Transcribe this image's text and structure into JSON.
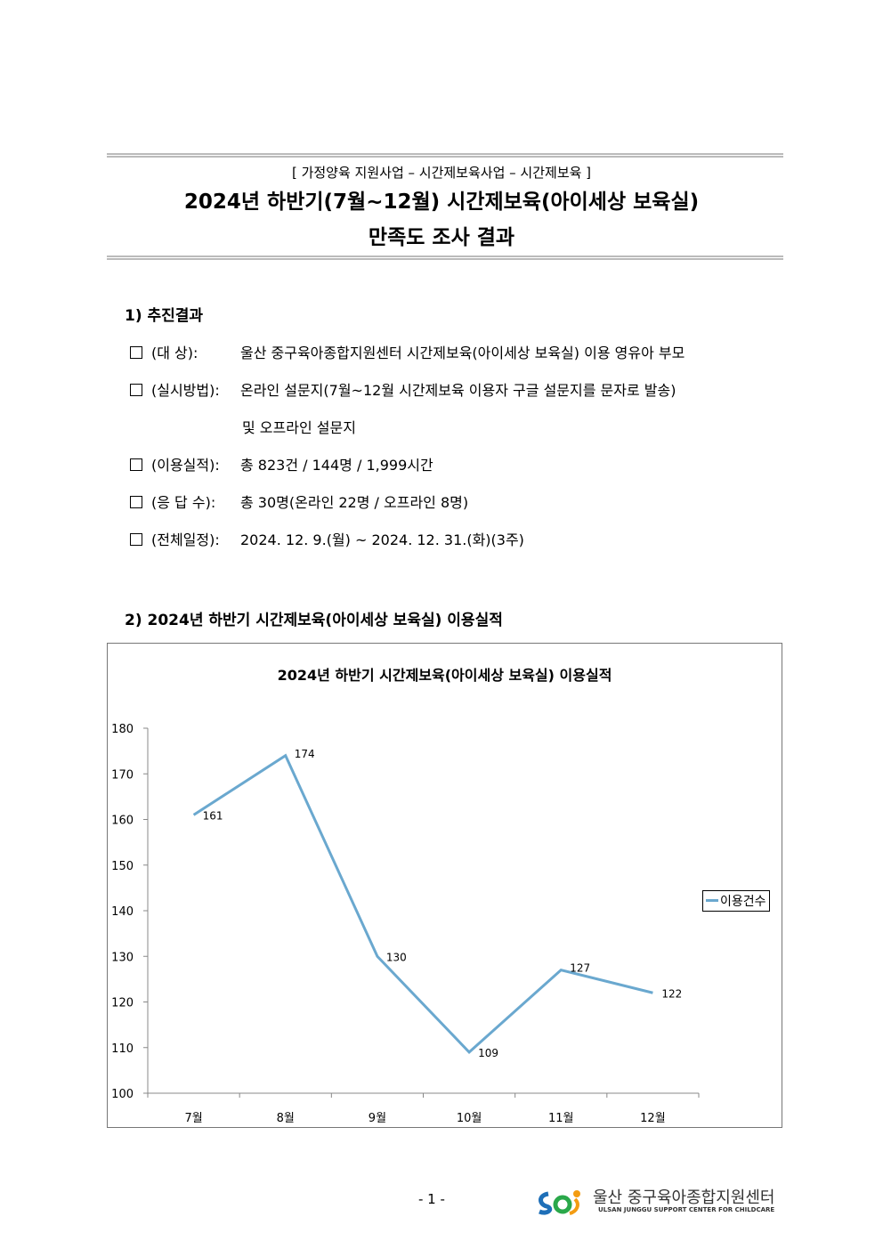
{
  "header": {
    "subtitle": "[ 가정양육 지원사업  – 시간제보육사업 – 시간제보육 ]",
    "title_line1": "2024년 하반기(7월~12월) 시간제보육(아이세상 보육실)",
    "title_line2": "만족도 조사 결과"
  },
  "section1": {
    "heading": "1) 추진결과",
    "items": [
      {
        "label": "(대      상):",
        "value": "울산 중구육아종합지원센터 시간제보육(아이세상 보육실) 이용 영유아 부모"
      },
      {
        "label": "(실시방법):",
        "value": "온라인 설문지(7월~12월 시간제보육 이용자 구글 설문지를 문자로 발송)"
      },
      {
        "label": "",
        "value": "및 오프라인 설문지"
      },
      {
        "label": "(이용실적):",
        "value": "총 823건 / 144명 / 1,999시간"
      },
      {
        "label": "(응 답 수):",
        "value": "총 30명(온라인 22명 / 오프라인 8명)"
      },
      {
        "label": "(전체일정):",
        "value": "2024. 12. 9.(월) ~ 2024. 12. 31.(화)(3주)"
      }
    ]
  },
  "section2": {
    "heading": "2) 2024년 하반기 시간제보육(아이세상 보육실) 이용실적"
  },
  "chart_data": {
    "type": "line",
    "title": "2024년 하반기 시간제보육(아이세상 보육실) 이용실적",
    "categories": [
      "7월",
      "8월",
      "9월",
      "10월",
      "11월",
      "12월"
    ],
    "series": [
      {
        "name": "이용건수",
        "values": [
          161,
          174,
          130,
          109,
          127,
          122
        ],
        "color": "#6aa8cf"
      }
    ],
    "ylim": [
      100,
      180
    ],
    "yticks": [
      100,
      110,
      120,
      130,
      140,
      150,
      160,
      170,
      180
    ],
    "legend": "right",
    "grid": false
  },
  "footer": {
    "page": "- 1 -",
    "logo_ko": "울산 중구육아종합지원센터",
    "logo_en": "ULSAN JUNGGU SUPPORT CENTER FOR CHILDCARE"
  }
}
